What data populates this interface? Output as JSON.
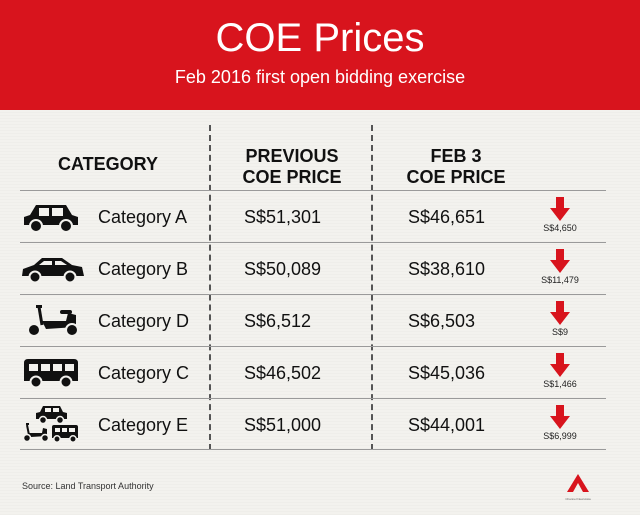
{
  "header": {
    "title": "COE Prices",
    "subtitle": "Feb 2016 first open bidding exercise"
  },
  "columns": {
    "category": "CATEGORY",
    "previous_line1": "PREVIOUS",
    "previous_line2": "COE PRICE",
    "feb_line1": "FEB 3",
    "feb_line2": "COE PRICE"
  },
  "rows": [
    {
      "icon": "car-icon",
      "category": "Category A",
      "previous": "S$51,301",
      "feb3": "S$46,651",
      "drop": "S$4,650"
    },
    {
      "icon": "sedan-icon",
      "category": "Category B",
      "previous": "S$50,089",
      "feb3": "S$38,610",
      "drop": "S$11,479"
    },
    {
      "icon": "scooter-icon",
      "category": "Category D",
      "previous": "S$6,512",
      "feb3": "S$6,503",
      "drop": "S$9"
    },
    {
      "icon": "van-icon",
      "category": "Category C",
      "previous": "S$46,502",
      "feb3": "S$45,036",
      "drop": "S$1,466"
    },
    {
      "icon": "mixed-vehicles-icon",
      "category": "Category E",
      "previous": "S$51,000",
      "feb3": "S$44,001",
      "drop": "S$6,999"
    }
  ],
  "footer": {
    "source": "Source: Land Transport Authority",
    "logo_tagline": "Channel NewsAsia"
  },
  "colors": {
    "accent": "#d8141d",
    "arrow": "#d8141d",
    "text": "#111111"
  }
}
